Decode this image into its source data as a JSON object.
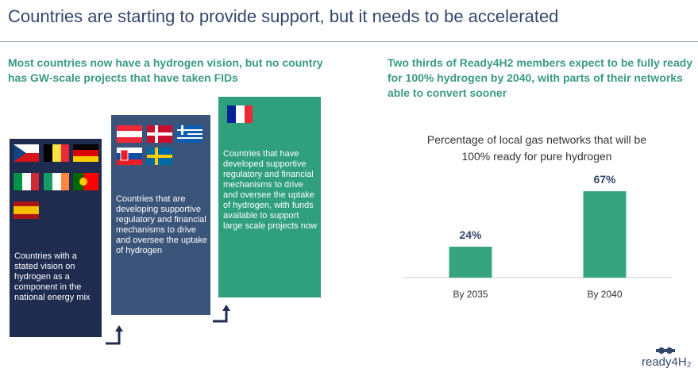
{
  "title": "Countries are starting to provide support, but it needs to be accelerated",
  "left": {
    "heading": "Most countries now have a hydrogen vision, but no country has GW-scale projects that have taken FIDs",
    "boxes": [
      {
        "text": "Countries  with a stated vision on hydrogen as a component in the national energy mix"
      },
      {
        "text": "Countries that are developing supportive regulatory and financial mechanisms to drive and oversee the uptake of hydrogen"
      },
      {
        "text": "Countries that have developed supportive regulatory and financial mechanisms to drive and oversee the uptake of hydrogen, with funds available to support large scale projects now"
      }
    ]
  },
  "right": {
    "heading": "Two thirds of Ready4H2 members expect to be fully ready for 100% hydrogen by 2040, with parts of their networks able to convert sooner"
  },
  "logo": "ready4H₂",
  "chart_data": {
    "type": "bar",
    "title": "Percentage of local gas networks that will be 100% ready for pure hydrogen",
    "categories": [
      "By 2035",
      "By 2040"
    ],
    "values": [
      24,
      67
    ],
    "value_labels": [
      "24%",
      "67%"
    ],
    "color": "#36a57f",
    "ylim": [
      0,
      80
    ]
  }
}
